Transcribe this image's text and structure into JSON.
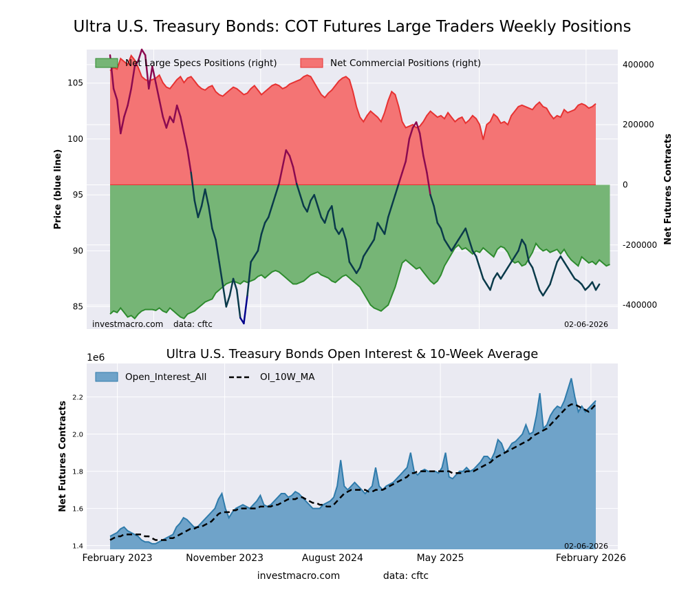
{
  "colors": {
    "specs_fill": "#76b576",
    "specs_line": "#2e8b2e",
    "comm_fill": "#f47474",
    "comm_line": "#e63232",
    "price_up": "#8b0a50",
    "price_down": "#00008b",
    "price_dark": "#0a3a4a",
    "oi_fill": "#6fa3c9",
    "oi_line": "#2f7bab",
    "ma_line": "#000000",
    "axes_bg": "#eaeaf2",
    "grid": "#ffffff"
  },
  "chart_data": [
    {
      "type": "area",
      "title": "Ultra U.S. Treasury Bonds: COT Futures Large Traders Weekly Positions",
      "ylabel_left": "Price (blue line)",
      "ylabel_right": "Net Futures Contracts",
      "ylim_left": [
        83,
        108
      ],
      "ylim_right": [
        -480000,
        450000
      ],
      "yticks_left": [
        "85",
        "90",
        "95",
        "100",
        "105"
      ],
      "yticks_right": [
        "-400000",
        "-200000",
        "0",
        "200000",
        "400000"
      ],
      "legend": [
        "Net Large Specs Positions (right)",
        "Net Commercial Positions (right)"
      ],
      "legend_position": "top-left",
      "grid": true,
      "x_start": "2023-01-31",
      "x_end": "2026-02-03",
      "footer_left": "investmacro.com",
      "footer_mid": "data: cftc",
      "footer_right": "02-06-2026",
      "comm_values": [
        380000,
        390000,
        385000,
        420000,
        410000,
        400000,
        430000,
        415000,
        390000,
        360000,
        350000,
        345000,
        350000,
        355000,
        365000,
        340000,
        325000,
        320000,
        335000,
        350000,
        360000,
        340000,
        355000,
        360000,
        345000,
        330000,
        320000,
        315000,
        325000,
        330000,
        310000,
        300000,
        295000,
        305000,
        315000,
        325000,
        320000,
        310000,
        300000,
        305000,
        320000,
        330000,
        315000,
        300000,
        310000,
        320000,
        330000,
        335000,
        330000,
        320000,
        325000,
        335000,
        340000,
        345000,
        350000,
        360000,
        365000,
        360000,
        340000,
        320000,
        300000,
        290000,
        305000,
        315000,
        330000,
        345000,
        355000,
        360000,
        350000,
        310000,
        260000,
        225000,
        210000,
        230000,
        245000,
        235000,
        225000,
        210000,
        240000,
        280000,
        310000,
        300000,
        260000,
        210000,
        190000,
        195000,
        200000,
        190000,
        195000,
        210000,
        230000,
        245000,
        235000,
        225000,
        230000,
        220000,
        240000,
        225000,
        210000,
        220000,
        225000,
        205000,
        215000,
        230000,
        220000,
        200000,
        150000,
        200000,
        210000,
        235000,
        225000,
        205000,
        210000,
        200000,
        230000,
        245000,
        260000,
        265000,
        260000,
        255000,
        250000,
        265000,
        275000,
        260000,
        255000,
        235000,
        220000,
        230000,
        225000,
        250000,
        240000,
        245000,
        250000,
        265000,
        270000,
        265000,
        255000,
        260000,
        270000
      ],
      "specs_values": [
        -430000,
        -420000,
        -425000,
        -410000,
        -425000,
        -440000,
        -435000,
        -445000,
        -430000,
        -420000,
        -415000,
        -415000,
        -415000,
        -418000,
        -410000,
        -420000,
        -425000,
        -410000,
        -420000,
        -430000,
        -440000,
        -445000,
        -430000,
        -425000,
        -420000,
        -410000,
        -400000,
        -390000,
        -385000,
        -380000,
        -360000,
        -350000,
        -340000,
        -330000,
        -325000,
        -320000,
        -325000,
        -330000,
        -320000,
        -325000,
        -320000,
        -315000,
        -305000,
        -300000,
        -310000,
        -300000,
        -290000,
        -285000,
        -290000,
        -300000,
        -310000,
        -320000,
        -330000,
        -330000,
        -325000,
        -320000,
        -310000,
        -300000,
        -295000,
        -290000,
        -300000,
        -305000,
        -310000,
        -320000,
        -325000,
        -315000,
        -305000,
        -300000,
        -310000,
        -320000,
        -330000,
        -340000,
        -360000,
        -380000,
        -400000,
        -410000,
        -415000,
        -420000,
        -410000,
        -400000,
        -370000,
        -340000,
        -300000,
        -260000,
        -250000,
        -260000,
        -270000,
        -280000,
        -275000,
        -290000,
        -305000,
        -320000,
        -330000,
        -320000,
        -300000,
        -270000,
        -250000,
        -230000,
        -210000,
        -200000,
        -215000,
        -210000,
        -220000,
        -230000,
        -220000,
        -225000,
        -210000,
        -220000,
        -230000,
        -240000,
        -215000,
        -205000,
        -210000,
        -225000,
        -250000,
        -260000,
        -255000,
        -270000,
        -265000,
        -245000,
        -225000,
        -195000,
        -210000,
        -220000,
        -215000,
        -225000,
        -220000,
        -215000,
        -230000,
        -215000,
        -235000,
        -250000,
        -260000,
        -270000,
        -240000,
        -250000,
        -260000,
        -255000,
        -265000,
        -250000,
        -260000,
        -270000,
        -265000
      ],
      "price_values": [
        107.5,
        104.5,
        103.5,
        100.5,
        102,
        103,
        104.5,
        106.5,
        107,
        108,
        107.5,
        104.5,
        106.5,
        105,
        103.5,
        102,
        101,
        102,
        101.5,
        103,
        102,
        100.5,
        99,
        97,
        94.5,
        93,
        94,
        95.5,
        94,
        92,
        91,
        89,
        87,
        85,
        86,
        87.5,
        86.5,
        84,
        83.5,
        86,
        89,
        89.5,
        90,
        91.5,
        92.5,
        93,
        94,
        95,
        96,
        97.5,
        99,
        98.5,
        97.5,
        96,
        95,
        94,
        93.5,
        94.5,
        95,
        94,
        93,
        92.5,
        93.5,
        94,
        92,
        91.5,
        92,
        91,
        89,
        88.5,
        88,
        88.5,
        89.5,
        90,
        90.5,
        91,
        92.5,
        92,
        91.5,
        93,
        94,
        95,
        96,
        97,
        98,
        100,
        101,
        101.5,
        100.5,
        98.5,
        97,
        95,
        94,
        92.5,
        92,
        91,
        90.5,
        90,
        90.5,
        91,
        91.5,
        92,
        91,
        90,
        89.5,
        88.5,
        87.5,
        87,
        86.5,
        87.5,
        88,
        87.5,
        88,
        88.5,
        89,
        89.5,
        90,
        91,
        90.5,
        89,
        88.5,
        87.5,
        86.5,
        86,
        86.5,
        87,
        88,
        89,
        89.5,
        89,
        88.5,
        88,
        87.5,
        87.3,
        87,
        86.5,
        86.8,
        87.2,
        86.5,
        87
      ]
    },
    {
      "type": "area",
      "title": "Ultra U.S. Treasury Bonds Open Interest & 10-Week Average",
      "ylabel": "Net Futures Contracts",
      "multiplier": "1e6",
      "ylim": [
        1.38,
        2.38
      ],
      "yticks": [
        "1.4",
        "1.6",
        "1.8",
        "2.0",
        "2.2"
      ],
      "xticks": [
        "February 2023",
        "November 2023",
        "August 2024",
        "May 2025",
        "February 2026"
      ],
      "legend": [
        "Open_Interest_All",
        "OI_10W_MA"
      ],
      "legend_position": "top-left",
      "grid": true,
      "footer_right": "02-06-2026",
      "footer_left": "investmacro.com",
      "footer_mid": "data: cftc",
      "oi_values": [
        1.45,
        1.46,
        1.47,
        1.49,
        1.5,
        1.48,
        1.47,
        1.46,
        1.45,
        1.43,
        1.42,
        1.42,
        1.41,
        1.41,
        1.42,
        1.43,
        1.44,
        1.45,
        1.46,
        1.5,
        1.52,
        1.55,
        1.54,
        1.52,
        1.5,
        1.5,
        1.52,
        1.54,
        1.56,
        1.58,
        1.6,
        1.65,
        1.68,
        1.6,
        1.55,
        1.58,
        1.6,
        1.61,
        1.62,
        1.61,
        1.6,
        1.62,
        1.64,
        1.67,
        1.62,
        1.61,
        1.62,
        1.64,
        1.66,
        1.68,
        1.68,
        1.66,
        1.67,
        1.69,
        1.68,
        1.66,
        1.64,
        1.62,
        1.6,
        1.6,
        1.6,
        1.62,
        1.63,
        1.64,
        1.66,
        1.72,
        1.86,
        1.72,
        1.7,
        1.72,
        1.74,
        1.72,
        1.7,
        1.68,
        1.7,
        1.72,
        1.82,
        1.72,
        1.7,
        1.72,
        1.73,
        1.74,
        1.76,
        1.78,
        1.8,
        1.82,
        1.9,
        1.8,
        1.78,
        1.8,
        1.81,
        1.8,
        1.8,
        1.8,
        1.79,
        1.82,
        1.9,
        1.77,
        1.76,
        1.78,
        1.8,
        1.8,
        1.82,
        1.8,
        1.81,
        1.83,
        1.85,
        1.88,
        1.88,
        1.86,
        1.9,
        1.97,
        1.95,
        1.9,
        1.92,
        1.95,
        1.96,
        1.98,
        2.0,
        2.05,
        2.0,
        2.01,
        2.1,
        2.22,
        2.03,
        2.05,
        2.1,
        2.13,
        2.15,
        2.14,
        2.18,
        2.24,
        2.3,
        2.2,
        2.12,
        2.15,
        2.12,
        2.14,
        2.16,
        2.18
      ]
    }
  ],
  "ma_values": [
    1.43,
    1.44,
    1.45,
    1.45,
    1.46,
    1.46,
    1.46,
    1.46,
    1.46,
    1.46,
    1.45,
    1.45,
    1.44,
    1.43,
    1.43,
    1.43,
    1.43,
    1.44,
    1.44,
    1.45,
    1.46,
    1.47,
    1.48,
    1.49,
    1.49,
    1.5,
    1.5,
    1.51,
    1.52,
    1.53,
    1.55,
    1.57,
    1.58,
    1.58,
    1.58,
    1.59,
    1.59,
    1.6,
    1.6,
    1.6,
    1.6,
    1.6,
    1.6,
    1.61,
    1.61,
    1.61,
    1.61,
    1.62,
    1.62,
    1.63,
    1.64,
    1.65,
    1.65,
    1.65,
    1.66,
    1.66,
    1.65,
    1.64,
    1.63,
    1.63,
    1.62,
    1.62,
    1.61,
    1.61,
    1.62,
    1.64,
    1.66,
    1.68,
    1.69,
    1.7,
    1.7,
    1.7,
    1.7,
    1.7,
    1.69,
    1.69,
    1.7,
    1.7,
    1.7,
    1.71,
    1.72,
    1.73,
    1.74,
    1.75,
    1.76,
    1.77,
    1.79,
    1.79,
    1.8,
    1.8,
    1.8,
    1.8,
    1.8,
    1.8,
    1.8,
    1.8,
    1.8,
    1.8,
    1.79,
    1.79,
    1.79,
    1.79,
    1.8,
    1.8,
    1.8,
    1.81,
    1.82,
    1.83,
    1.84,
    1.85,
    1.87,
    1.88,
    1.89,
    1.9,
    1.91,
    1.92,
    1.93,
    1.94,
    1.95,
    1.96,
    1.97,
    1.99,
    2.0,
    2.01,
    2.02,
    2.03,
    2.05,
    2.07,
    2.09,
    2.11,
    2.13,
    2.15,
    2.16,
    2.16,
    2.15,
    2.14,
    2.13,
    2.12,
    2.14,
    2.16
  ],
  "footer": {
    "site": "investmacro.com",
    "source": "data: cftc"
  }
}
